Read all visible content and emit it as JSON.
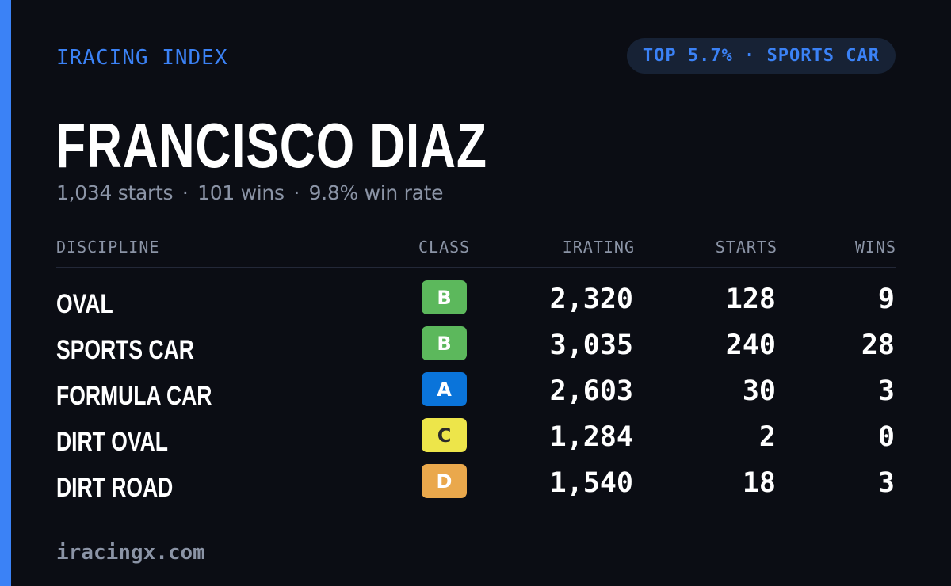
{
  "brand": "IRACING INDEX",
  "badge": "TOP 5.7% · SPORTS CAR",
  "driver": {
    "name": "FRANCISCO DIAZ",
    "starts": "1,034 starts",
    "wins": "101 wins",
    "win_rate": "9.8% win rate",
    "separator": "·"
  },
  "table": {
    "headers": {
      "discipline": "DISCIPLINE",
      "class": "CLASS",
      "irating": "IRATING",
      "starts": "STARTS",
      "wins": "WINS"
    },
    "rows": [
      {
        "discipline": "OVAL",
        "class": "B",
        "class_color": "#5cb85c",
        "class_text_color": "#ffffff",
        "irating": "2,320",
        "starts": "128",
        "wins": "9"
      },
      {
        "discipline": "SPORTS CAR",
        "class": "B",
        "class_color": "#5cb85c",
        "class_text_color": "#ffffff",
        "irating": "3,035",
        "starts": "240",
        "wins": "28"
      },
      {
        "discipline": "FORMULA CAR",
        "class": "A",
        "class_color": "#0a74da",
        "class_text_color": "#ffffff",
        "irating": "2,603",
        "starts": "30",
        "wins": "3"
      },
      {
        "discipline": "DIRT OVAL",
        "class": "C",
        "class_color": "#ede54a",
        "class_text_color": "#2a2a2a",
        "irating": "1,284",
        "starts": "2",
        "wins": "0"
      },
      {
        "discipline": "DIRT ROAD",
        "class": "D",
        "class_color": "#eaa84c",
        "class_text_color": "#ffffff",
        "irating": "1,540",
        "starts": "18",
        "wins": "3"
      }
    ]
  },
  "footer": "iracingx.com",
  "colors": {
    "accent": "#3b82f6",
    "background": "#0b0d14",
    "muted_text": "#8b94a6"
  }
}
